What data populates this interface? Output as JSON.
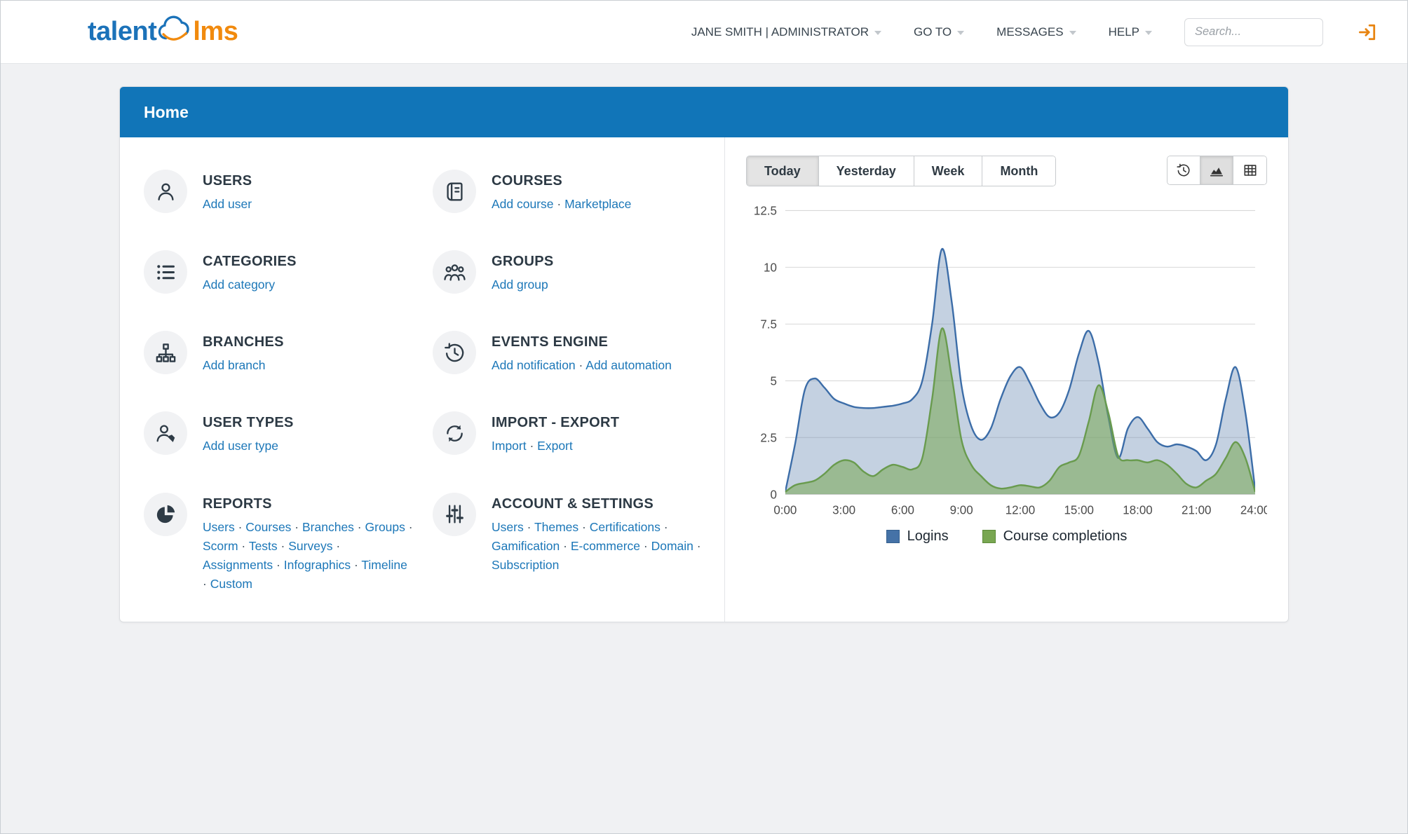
{
  "header": {
    "logo": {
      "part1": "talent",
      "part2": "lms"
    },
    "nav": [
      {
        "id": "nav-user-menu",
        "label": "JANE SMITH | ADMINISTRATOR",
        "chevron": true
      },
      {
        "id": "nav-goto",
        "label": "GO TO",
        "chevron": true
      },
      {
        "id": "nav-messages",
        "label": "MESSAGES",
        "chevron": true
      },
      {
        "id": "nav-help",
        "label": "HELP",
        "chevron": true
      }
    ],
    "search_placeholder": "Search...",
    "logout_icon": "sign-out-icon"
  },
  "page": {
    "title": "Home"
  },
  "menu": {
    "items": [
      {
        "id": "users",
        "title": "USERS",
        "icon": "user-icon",
        "links": [
          "Add user"
        ]
      },
      {
        "id": "courses",
        "title": "COURSES",
        "icon": "book-icon",
        "links": [
          "Add course",
          "Marketplace"
        ]
      },
      {
        "id": "categories",
        "title": "CATEGORIES",
        "icon": "list-icon",
        "links": [
          "Add category"
        ]
      },
      {
        "id": "groups",
        "title": "GROUPS",
        "icon": "group-icon",
        "links": [
          "Add group"
        ]
      },
      {
        "id": "branches",
        "title": "BRANCHES",
        "icon": "sitemap-icon",
        "links": [
          "Add branch"
        ]
      },
      {
        "id": "events-engine",
        "title": "EVENTS ENGINE",
        "icon": "history-icon",
        "links": [
          "Add notification",
          "Add automation"
        ]
      },
      {
        "id": "user-types",
        "title": "USER TYPES",
        "icon": "user-tag-icon",
        "links": [
          "Add user type"
        ]
      },
      {
        "id": "import-export",
        "title": "IMPORT - EXPORT",
        "icon": "sync-icon",
        "links": [
          "Import",
          "Export"
        ]
      },
      {
        "id": "reports",
        "title": "REPORTS",
        "icon": "pie-icon",
        "links": [
          "Users",
          "Courses",
          "Branches",
          "Groups",
          "Scorm",
          "Tests",
          "Surveys",
          "Assignments",
          "Infographics",
          "Timeline",
          "Custom"
        ]
      },
      {
        "id": "account-settings",
        "title": "ACCOUNT & SETTINGS",
        "icon": "sliders-icon",
        "links": [
          "Users",
          "Themes",
          "Certifications",
          "Gamification",
          "E-commerce",
          "Domain",
          "Subscription"
        ]
      }
    ],
    "separator": "·"
  },
  "chart": {
    "tabs": [
      "Today",
      "Yesterday",
      "Week",
      "Month"
    ],
    "active_tab": "Today",
    "view_buttons": [
      {
        "id": "history-view-button",
        "icon": "history-icon",
        "active": false
      },
      {
        "id": "area-chart-view-button",
        "icon": "area-chart-icon",
        "active": true
      },
      {
        "id": "table-view-button",
        "icon": "table-icon",
        "active": false
      }
    ]
  },
  "chart_data": {
    "type": "area",
    "x_unit": "hours",
    "x_start": 0,
    "x_step": 0.5,
    "xlim": [
      0,
      24
    ],
    "ylim": [
      0,
      12.5
    ],
    "yticks": [
      0,
      2.5,
      5,
      7.5,
      10,
      12.5
    ],
    "xtick_labels": [
      "0:00",
      "3:00",
      "6:00",
      "9:00",
      "12:00",
      "15:00",
      "18:00",
      "21:00",
      "24:00"
    ],
    "xtick_hours": [
      0,
      3,
      6,
      9,
      12,
      15,
      18,
      21,
      24
    ],
    "grid": true,
    "legend_position": "bottom",
    "series": [
      {
        "name": "Logins",
        "color": "#3c6da8",
        "fill": "rgba(99,134,176,0.38)",
        "swatch": "#4572a7",
        "swatch_border": "#35608f",
        "values": [
          0.1,
          2.2,
          4.6,
          5.1,
          4.7,
          4.2,
          4.0,
          3.85,
          3.8,
          3.8,
          3.85,
          3.9,
          4.0,
          4.2,
          5.0,
          7.5,
          10.8,
          8.5,
          4.8,
          3.0,
          2.4,
          2.9,
          4.2,
          5.2,
          5.6,
          4.9,
          4.0,
          3.4,
          3.6,
          4.6,
          6.2,
          7.2,
          5.8,
          3.4,
          1.6,
          2.9,
          3.4,
          2.9,
          2.3,
          2.1,
          2.2,
          2.1,
          1.9,
          1.5,
          2.2,
          4.2,
          5.6,
          3.6,
          0.2
        ]
      },
      {
        "name": "Course completions",
        "color": "#699b4e",
        "fill": "rgba(121,167,82,0.55)",
        "swatch": "#79a752",
        "swatch_border": "#5d8b39",
        "values": [
          0.1,
          0.4,
          0.5,
          0.6,
          0.9,
          1.3,
          1.5,
          1.4,
          1.0,
          0.8,
          1.1,
          1.3,
          1.2,
          1.1,
          1.6,
          4.2,
          7.3,
          5.2,
          2.4,
          1.3,
          0.8,
          0.4,
          0.25,
          0.3,
          0.4,
          0.35,
          0.3,
          0.6,
          1.2,
          1.4,
          1.7,
          3.2,
          4.8,
          3.6,
          1.7,
          1.5,
          1.5,
          1.4,
          1.5,
          1.3,
          0.9,
          0.45,
          0.3,
          0.6,
          0.9,
          1.6,
          2.3,
          1.6,
          0.1
        ]
      }
    ]
  }
}
